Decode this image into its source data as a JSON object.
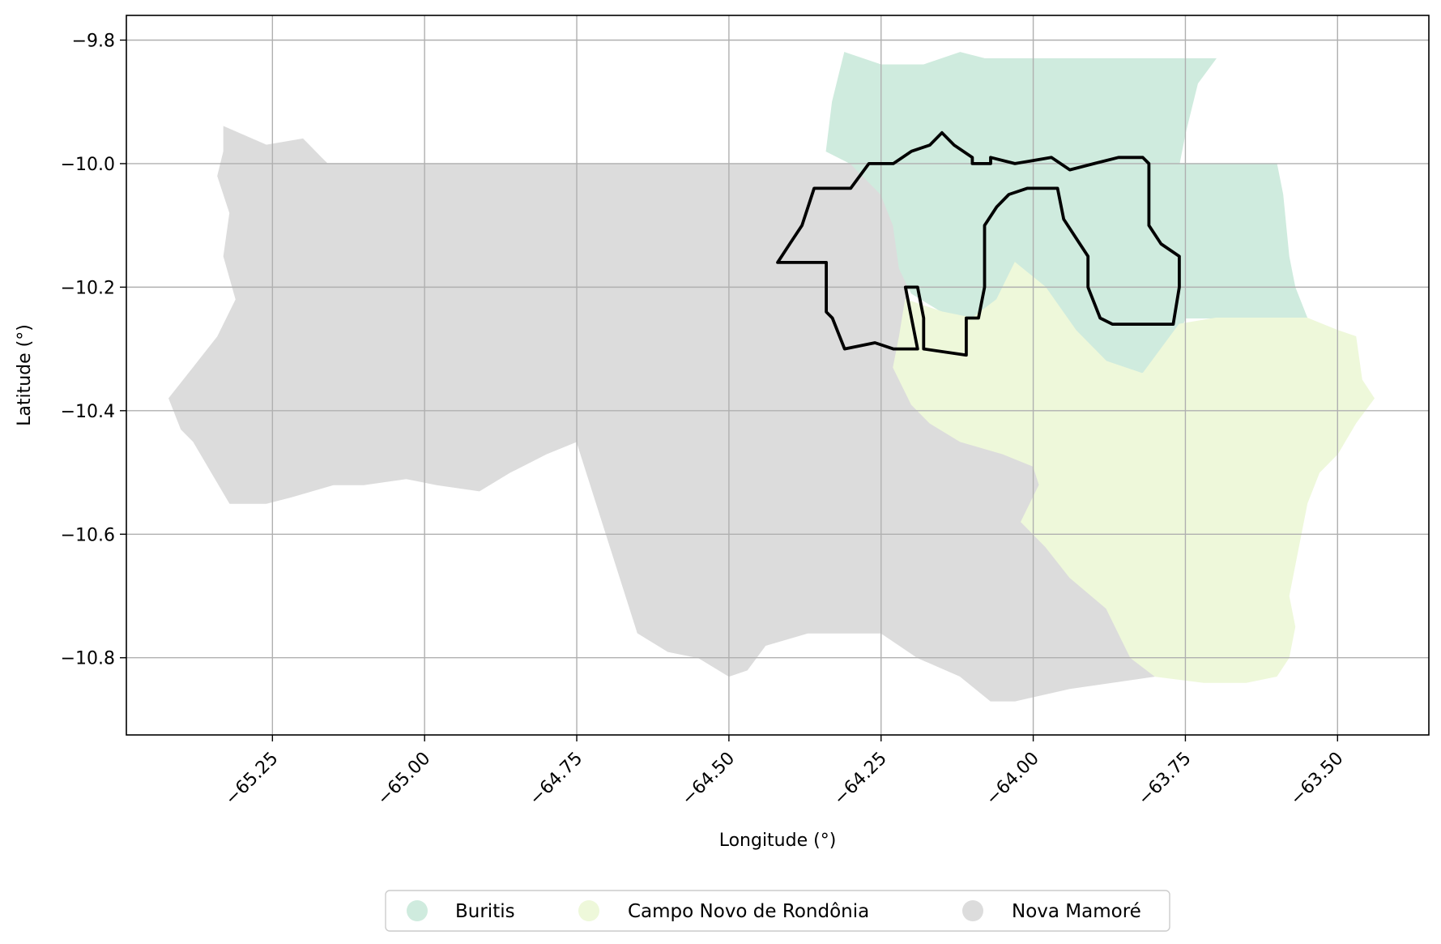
{
  "map": {
    "type": "choropleth",
    "xlabel": "Longitude (°)",
    "ylabel": "Latitude (°)",
    "xlim": [
      -65.49,
      -63.35
    ],
    "ylim": [
      -10.925,
      -9.76
    ],
    "grid": true,
    "legend_position": "bottom-center",
    "x_ticks": [
      {
        "value": -65.25,
        "label": "−65.25"
      },
      {
        "value": -65.0,
        "label": "−65.00"
      },
      {
        "value": -64.75,
        "label": "−64.75"
      },
      {
        "value": -64.5,
        "label": "−64.50"
      },
      {
        "value": -64.25,
        "label": "−64.25"
      },
      {
        "value": -64.0,
        "label": "−64.00"
      },
      {
        "value": -63.75,
        "label": "−63.75"
      },
      {
        "value": -63.5,
        "label": "−63.50"
      }
    ],
    "y_ticks": [
      {
        "value": -9.8,
        "label": "−9.8"
      },
      {
        "value": -10.0,
        "label": "−10.0"
      },
      {
        "value": -10.2,
        "label": "−10.2"
      },
      {
        "value": -10.4,
        "label": "−10.4"
      },
      {
        "value": -10.6,
        "label": "−10.6"
      },
      {
        "value": -10.8,
        "label": "−10.8"
      }
    ],
    "regions": [
      {
        "name": "Nova Mamoré",
        "color": "#dcdcdc",
        "polygon": [
          [
            -65.33,
            -9.94
          ],
          [
            -65.26,
            -9.97
          ],
          [
            -65.2,
            -9.96
          ],
          [
            -65.17,
            -9.99
          ],
          [
            -65.16,
            -10.0
          ],
          [
            -64.87,
            -10.0
          ],
          [
            -64.5,
            -10.0
          ],
          [
            -64.25,
            -10.0
          ],
          [
            -64.22,
            -10.05
          ],
          [
            -64.23,
            -10.1
          ],
          [
            -64.22,
            -10.15
          ],
          [
            -64.2,
            -10.18
          ],
          [
            -64.21,
            -10.22
          ],
          [
            -64.22,
            -10.28
          ],
          [
            -64.23,
            -10.33
          ],
          [
            -64.2,
            -10.39
          ],
          [
            -64.17,
            -10.42
          ],
          [
            -64.12,
            -10.45
          ],
          [
            -64.05,
            -10.47
          ],
          [
            -64.0,
            -10.49
          ],
          [
            -63.99,
            -10.52
          ],
          [
            -64.02,
            -10.58
          ],
          [
            -63.98,
            -10.62
          ],
          [
            -63.94,
            -10.67
          ],
          [
            -63.88,
            -10.72
          ],
          [
            -63.84,
            -10.8
          ],
          [
            -63.8,
            -10.83
          ],
          [
            -63.94,
            -10.85
          ],
          [
            -64.03,
            -10.87
          ],
          [
            -64.07,
            -10.87
          ],
          [
            -64.12,
            -10.83
          ],
          [
            -64.19,
            -10.8
          ],
          [
            -64.25,
            -10.76
          ],
          [
            -64.3,
            -10.76
          ],
          [
            -64.37,
            -10.76
          ],
          [
            -64.44,
            -10.78
          ],
          [
            -64.47,
            -10.82
          ],
          [
            -64.5,
            -10.83
          ],
          [
            -64.55,
            -10.8
          ],
          [
            -64.6,
            -10.79
          ],
          [
            -64.65,
            -10.76
          ],
          [
            -64.75,
            -10.45
          ],
          [
            -64.8,
            -10.47
          ],
          [
            -64.86,
            -10.5
          ],
          [
            -64.91,
            -10.53
          ],
          [
            -64.98,
            -10.52
          ],
          [
            -65.03,
            -10.51
          ],
          [
            -65.1,
            -10.52
          ],
          [
            -65.15,
            -10.52
          ],
          [
            -65.22,
            -10.54
          ],
          [
            -65.26,
            -10.55
          ],
          [
            -65.32,
            -10.55
          ],
          [
            -65.35,
            -10.5
          ],
          [
            -65.38,
            -10.45
          ],
          [
            -65.4,
            -10.43
          ],
          [
            -65.42,
            -10.38
          ],
          [
            -65.38,
            -10.33
          ],
          [
            -65.34,
            -10.28
          ],
          [
            -65.31,
            -10.22
          ],
          [
            -65.33,
            -10.15
          ],
          [
            -65.32,
            -10.08
          ],
          [
            -65.34,
            -10.02
          ],
          [
            -65.33,
            -9.98
          ]
        ]
      },
      {
        "name": "Buritis",
        "color": "#cfebde",
        "polygon": [
          [
            -64.31,
            -9.82
          ],
          [
            -64.25,
            -9.84
          ],
          [
            -64.18,
            -9.84
          ],
          [
            -64.12,
            -9.82
          ],
          [
            -64.08,
            -9.83
          ],
          [
            -63.7,
            -9.83
          ],
          [
            -63.73,
            -9.87
          ],
          [
            -63.75,
            -9.95
          ],
          [
            -63.76,
            -10.0
          ],
          [
            -63.6,
            -10.0
          ],
          [
            -63.59,
            -10.05
          ],
          [
            -63.58,
            -10.15
          ],
          [
            -63.57,
            -10.2
          ],
          [
            -63.55,
            -10.25
          ],
          [
            -63.75,
            -10.25
          ],
          [
            -63.77,
            -10.3
          ],
          [
            -63.8,
            -10.33
          ],
          [
            -63.85,
            -10.35
          ],
          [
            -63.9,
            -10.36
          ],
          [
            -63.95,
            -10.36
          ],
          [
            -63.95,
            -10.3
          ],
          [
            -64.0,
            -10.27
          ],
          [
            -64.05,
            -10.22
          ],
          [
            -64.1,
            -10.25
          ],
          [
            -64.15,
            -10.24
          ],
          [
            -64.2,
            -10.21
          ],
          [
            -64.22,
            -10.17
          ],
          [
            -64.23,
            -10.1
          ],
          [
            -64.25,
            -10.05
          ],
          [
            -64.27,
            -10.03
          ],
          [
            -64.3,
            -10.0
          ],
          [
            -64.34,
            -9.98
          ],
          [
            -64.33,
            -9.9
          ],
          [
            -64.32,
            -9.86
          ]
        ]
      },
      {
        "name": "Campo Novo de Rondônia",
        "color": "#eef8da",
        "polygon": [
          [
            -64.03,
            -10.16
          ],
          [
            -63.98,
            -10.2
          ],
          [
            -63.93,
            -10.27
          ],
          [
            -63.88,
            -10.32
          ],
          [
            -63.82,
            -10.34
          ],
          [
            -63.76,
            -10.26
          ],
          [
            -63.7,
            -10.25
          ],
          [
            -63.55,
            -10.25
          ],
          [
            -63.5,
            -10.27
          ],
          [
            -63.47,
            -10.28
          ],
          [
            -63.46,
            -10.35
          ],
          [
            -63.44,
            -10.38
          ],
          [
            -63.47,
            -10.42
          ],
          [
            -63.5,
            -10.47
          ],
          [
            -63.53,
            -10.5
          ],
          [
            -63.55,
            -10.55
          ],
          [
            -63.56,
            -10.6
          ],
          [
            -63.57,
            -10.65
          ],
          [
            -63.58,
            -10.7
          ],
          [
            -63.57,
            -10.75
          ],
          [
            -63.58,
            -10.8
          ],
          [
            -63.6,
            -10.83
          ],
          [
            -63.65,
            -10.84
          ],
          [
            -63.72,
            -10.84
          ],
          [
            -63.8,
            -10.83
          ],
          [
            -63.84,
            -10.8
          ],
          [
            -63.88,
            -10.72
          ],
          [
            -63.94,
            -10.67
          ],
          [
            -63.98,
            -10.62
          ],
          [
            -64.02,
            -10.58
          ],
          [
            -63.99,
            -10.52
          ],
          [
            -64.0,
            -10.49
          ],
          [
            -64.05,
            -10.47
          ],
          [
            -64.12,
            -10.45
          ],
          [
            -64.17,
            -10.42
          ],
          [
            -64.2,
            -10.39
          ],
          [
            -64.23,
            -10.33
          ],
          [
            -64.22,
            -10.28
          ],
          [
            -64.21,
            -10.22
          ],
          [
            -64.15,
            -10.24
          ],
          [
            -64.1,
            -10.25
          ],
          [
            -64.06,
            -10.22
          ]
        ]
      }
    ],
    "highlight_outline": {
      "color": "#000000",
      "polygon": [
        [
          -64.42,
          -10.16
        ],
        [
          -64.4,
          -10.13
        ],
        [
          -64.38,
          -10.1
        ],
        [
          -64.37,
          -10.07
        ],
        [
          -64.36,
          -10.04
        ],
        [
          -64.3,
          -10.04
        ],
        [
          -64.27,
          -10.0
        ],
        [
          -64.23,
          -10.0
        ],
        [
          -64.2,
          -9.98
        ],
        [
          -64.17,
          -9.97
        ],
        [
          -64.15,
          -9.95
        ],
        [
          -64.13,
          -9.97
        ],
        [
          -64.1,
          -9.99
        ],
        [
          -64.1,
          -10.0
        ],
        [
          -64.07,
          -10.0
        ],
        [
          -64.07,
          -9.99
        ],
        [
          -64.03,
          -10.0
        ],
        [
          -63.97,
          -9.99
        ],
        [
          -63.94,
          -10.01
        ],
        [
          -63.9,
          -10.0
        ],
        [
          -63.86,
          -9.99
        ],
        [
          -63.82,
          -9.99
        ],
        [
          -63.81,
          -10.0
        ],
        [
          -63.81,
          -10.05
        ],
        [
          -63.81,
          -10.1
        ],
        [
          -63.79,
          -10.13
        ],
        [
          -63.76,
          -10.15
        ],
        [
          -63.76,
          -10.2
        ],
        [
          -63.77,
          -10.26
        ],
        [
          -63.87,
          -10.26
        ],
        [
          -63.89,
          -10.25
        ],
        [
          -63.91,
          -10.2
        ],
        [
          -63.91,
          -10.15
        ],
        [
          -63.93,
          -10.12
        ],
        [
          -63.95,
          -10.09
        ],
        [
          -63.96,
          -10.04
        ],
        [
          -64.01,
          -10.04
        ],
        [
          -64.04,
          -10.05
        ],
        [
          -64.06,
          -10.07
        ],
        [
          -64.08,
          -10.1
        ],
        [
          -64.08,
          -10.2
        ],
        [
          -64.09,
          -10.25
        ],
        [
          -64.11,
          -10.25
        ],
        [
          -64.11,
          -10.31
        ],
        [
          -64.18,
          -10.3
        ],
        [
          -64.18,
          -10.25
        ],
        [
          -64.19,
          -10.2
        ],
        [
          -64.21,
          -10.2
        ],
        [
          -64.2,
          -10.25
        ],
        [
          -64.19,
          -10.3
        ],
        [
          -64.23,
          -10.3
        ],
        [
          -64.26,
          -10.29
        ],
        [
          -64.31,
          -10.3
        ],
        [
          -64.33,
          -10.25
        ],
        [
          -64.34,
          -10.24
        ],
        [
          -64.34,
          -10.16
        ]
      ]
    },
    "legend": [
      {
        "label": "Buritis",
        "color": "#cfebde"
      },
      {
        "label": "Campo Novo de Rondônia",
        "color": "#eef8da"
      },
      {
        "label": "Nova Mamoré",
        "color": "#dcdcdc"
      }
    ]
  }
}
